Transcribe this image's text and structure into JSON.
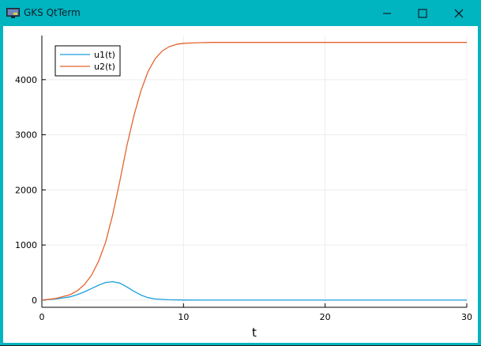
{
  "window": {
    "title": "GKS QtTerm",
    "icons": {
      "app": "gks-app-icon",
      "minimize": "minimize-icon",
      "maximize": "maximize-icon",
      "close": "close-icon"
    }
  },
  "chart_data": {
    "type": "line",
    "title": "",
    "xlabel": "t",
    "ylabel": "",
    "xlim": [
      0,
      30
    ],
    "ylim": [
      -130,
      4800
    ],
    "xticks": [
      0,
      10,
      20,
      30
    ],
    "yticks": [
      0,
      1000,
      2000,
      3000,
      4000
    ],
    "grid": true,
    "legend": "top-left",
    "series": [
      {
        "name": "u1(t)",
        "color": "#1b9fdc",
        "x": [
          0,
          1,
          2,
          2.5,
          3,
          3.5,
          4,
          4.5,
          5,
          5.5,
          6,
          6.5,
          7,
          7.5,
          8,
          9,
          10,
          12,
          15,
          20,
          25,
          30
        ],
        "y": [
          0,
          20,
          60,
          100,
          150,
          210,
          270,
          320,
          335,
          310,
          240,
          160,
          90,
          45,
          20,
          6,
          2,
          0,
          0,
          0,
          0,
          0
        ]
      },
      {
        "name": "u2(t)",
        "color": "#e4632f",
        "x": [
          0,
          1,
          2,
          2.5,
          3,
          3.5,
          4,
          4.5,
          5,
          5.5,
          6,
          6.5,
          7,
          7.5,
          8,
          8.5,
          9,
          9.5,
          10,
          11,
          12,
          14,
          16,
          20,
          25,
          30
        ],
        "y": [
          0,
          30,
          100,
          170,
          280,
          450,
          700,
          1050,
          1550,
          2150,
          2800,
          3350,
          3800,
          4150,
          4380,
          4520,
          4600,
          4640,
          4660,
          4670,
          4675,
          4676,
          4676,
          4676,
          4676,
          4676
        ]
      }
    ]
  }
}
